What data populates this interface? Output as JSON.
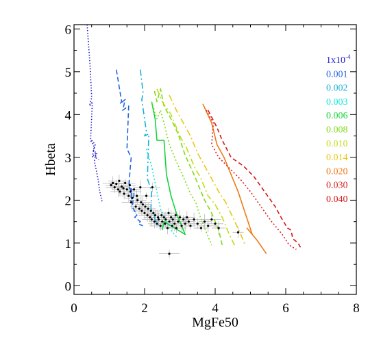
{
  "chart_data": {
    "type": "line",
    "xlabel": "MgFe50",
    "ylabel": "Hbeta",
    "xlim": [
      0,
      8
    ],
    "ylim": [
      -0.2,
      6.1
    ],
    "x_ticks": [
      0,
      2,
      4,
      6,
      8
    ],
    "x_tick_labels": [
      "0",
      "2",
      "4",
      "6",
      "8"
    ],
    "y_ticks": [
      0,
      1,
      2,
      3,
      4,
      5,
      6
    ],
    "y_tick_labels": [
      "0",
      "1",
      "2",
      "3",
      "4",
      "5",
      "6"
    ],
    "legend_position": "right",
    "legend": [
      {
        "label": "1x10",
        "sup": "-4",
        "color": "#1a1acc"
      },
      {
        "label": "0.001",
        "color": "#1f66e0"
      },
      {
        "label": "0.002",
        "color": "#16b0dc"
      },
      {
        "label": "0.003",
        "color": "#14e6dc"
      },
      {
        "label": "0.006",
        "color": "#14d43c"
      },
      {
        "label": "0.008",
        "color": "#7cdc14"
      },
      {
        "label": "0.010",
        "color": "#c2dc14"
      },
      {
        "label": "0.014",
        "color": "#e6c814"
      },
      {
        "label": "0.020",
        "color": "#f07814"
      },
      {
        "label": "0.030",
        "color": "#dc2020"
      },
      {
        "label": "0.040",
        "color": "#d41414"
      }
    ],
    "series": [
      {
        "color": "#1a1acc",
        "dash": "1.5,2.5",
        "x": [
          0.37,
          0.45,
          0.5,
          0.44,
          0.52,
          0.47,
          0.57,
          0.52,
          0.62,
          0.58,
          0.68,
          0.73,
          0.8
        ],
        "y": [
          6.1,
          5.2,
          4.4,
          4.2,
          4.3,
          3.4,
          3.25,
          3.0,
          3.1,
          2.9,
          2.5,
          2.2,
          1.95
        ]
      },
      {
        "color": "#1a1acc",
        "dash": "1.5,2.5",
        "x": [
          0.5,
          0.6,
          0.55,
          0.65,
          0.6,
          0.7
        ],
        "y": [
          3.4,
          3.3,
          3.15,
          3.1,
          3.0,
          2.95
        ]
      },
      {
        "color": "#1f66e0",
        "dash": "7,4",
        "x": [
          1.2,
          1.35,
          1.3,
          1.45,
          1.38,
          1.55,
          1.5,
          1.62,
          1.55,
          1.7,
          1.65,
          1.78,
          1.72,
          1.88,
          1.82,
          1.95
        ],
        "y": [
          5.05,
          4.3,
          4.25,
          4.35,
          4.1,
          4.2,
          3.2,
          3.0,
          2.3,
          2.15,
          1.85,
          1.65,
          1.6,
          1.5,
          1.45,
          1.4
        ]
      },
      {
        "color": "#1f66e0",
        "dash": "7,4",
        "x": [
          1.55,
          1.65,
          1.6,
          1.68
        ],
        "y": [
          2.3,
          2.25,
          2.0,
          1.9
        ]
      },
      {
        "color": "#16b0dc",
        "dash": "9,4,2,4",
        "x": [
          1.88,
          1.96,
          1.92,
          2.05,
          2.0,
          2.12,
          2.08,
          2.2,
          2.18,
          2.3,
          2.45
        ],
        "y": [
          5.05,
          4.5,
          4.35,
          3.6,
          3.5,
          3.55,
          2.5,
          2.2,
          1.8,
          1.55,
          1.35
        ]
      },
      {
        "color": "#14e6dc",
        "dash": "2,3",
        "x": [
          2.05,
          2.2,
          2.35,
          2.45,
          2.6,
          2.75,
          2.9
        ],
        "y": [
          3.2,
          2.8,
          2.2,
          1.8,
          1.55,
          1.3,
          1.15
        ]
      },
      {
        "color": "#14d43c",
        "dash": "",
        "x": [
          2.2,
          2.3,
          2.35,
          2.55,
          2.62,
          2.75,
          2.9,
          3.15,
          2.55,
          2.5
        ],
        "y": [
          4.3,
          3.9,
          3.4,
          3.4,
          2.6,
          2.1,
          1.7,
          1.2,
          1.5,
          1.3
        ]
      },
      {
        "color": "#7cdc14",
        "dash": "2,3",
        "x": [
          2.2,
          2.35,
          2.45,
          2.55,
          2.7,
          2.9,
          3.15,
          3.3,
          3.45,
          3.58,
          3.75,
          3.9
        ],
        "y": [
          4.3,
          3.9,
          4.1,
          3.8,
          3.3,
          2.9,
          2.45,
          2.15,
          1.95,
          1.6,
          1.25,
          0.95
        ]
      },
      {
        "color": "#7cdc14",
        "dash": "7,4",
        "x": [
          2.28,
          2.35,
          2.45,
          2.55,
          2.75,
          2.95,
          3.15,
          3.4,
          3.55,
          3.7,
          3.9,
          4.1,
          4.2
        ],
        "y": [
          4.55,
          4.3,
          4.6,
          4.2,
          3.9,
          3.55,
          3.05,
          2.6,
          2.3,
          2.0,
          1.7,
          1.3,
          0.95
        ]
      },
      {
        "color": "#c2dc14",
        "dash": "9,4,2,4",
        "x": [
          2.35,
          2.5,
          2.75,
          3.0,
          3.2,
          3.4,
          3.6,
          3.8,
          4.0,
          4.2,
          4.4,
          4.55
        ],
        "y": [
          4.6,
          4.3,
          4.0,
          3.5,
          3.2,
          2.8,
          2.5,
          2.1,
          1.9,
          1.6,
          1.2,
          0.95
        ]
      },
      {
        "color": "#e6c814",
        "dash": "9,4,2,4",
        "x": [
          2.7,
          2.9,
          3.1,
          3.3,
          3.5,
          3.7,
          3.9,
          4.1,
          4.3,
          4.5,
          4.7,
          4.85
        ],
        "y": [
          4.45,
          4.1,
          3.8,
          3.5,
          3.1,
          2.8,
          2.5,
          2.2,
          1.95,
          1.6,
          1.25,
          0.95
        ]
      },
      {
        "color": "#f07814",
        "dash": "",
        "x": [
          3.65,
          3.9,
          4.05,
          4.25,
          4.45,
          4.65,
          4.85,
          5.05,
          4.9,
          5.2,
          5.45
        ],
        "y": [
          4.25,
          3.8,
          3.3,
          3.0,
          2.6,
          2.2,
          1.7,
          1.2,
          1.35,
          1.05,
          0.75
        ]
      },
      {
        "color": "#dc2020",
        "dash": "2,3",
        "x": [
          3.75,
          3.95,
          3.9,
          4.1,
          4.4,
          4.7,
          5.0,
          5.3,
          5.6,
          5.9,
          6.1,
          6.3
        ],
        "y": [
          4.1,
          3.8,
          3.3,
          3.0,
          2.75,
          2.5,
          2.2,
          1.85,
          1.5,
          1.2,
          0.95,
          0.85
        ]
      },
      {
        "color": "#d41414",
        "dash": "6,4",
        "x": [
          3.8,
          4.05,
          4.2,
          4.45,
          4.8,
          5.1,
          5.4,
          5.7,
          5.9,
          6.05,
          6.15,
          6.2,
          6.35,
          6.45
        ],
        "y": [
          4.1,
          3.7,
          3.4,
          3.0,
          2.8,
          2.55,
          2.2,
          1.85,
          1.55,
          1.35,
          1.3,
          1.1,
          1.0,
          0.85
        ]
      }
    ],
    "points": [
      {
        "x": 1.05,
        "y": 2.35
      },
      {
        "x": 1.1,
        "y": 2.4
      },
      {
        "x": 1.15,
        "y": 2.3
      },
      {
        "x": 1.2,
        "y": 2.38
      },
      {
        "x": 1.25,
        "y": 2.25
      },
      {
        "x": 1.28,
        "y": 2.45
      },
      {
        "x": 1.3,
        "y": 2.2
      },
      {
        "x": 1.35,
        "y": 2.32
      },
      {
        "x": 1.4,
        "y": 2.28
      },
      {
        "x": 1.42,
        "y": 2.15
      },
      {
        "x": 1.45,
        "y": 2.4
      },
      {
        "x": 1.5,
        "y": 2.25
      },
      {
        "x": 1.55,
        "y": 2.1
      },
      {
        "x": 1.58,
        "y": 2.35
      },
      {
        "x": 1.6,
        "y": 2.2
      },
      {
        "x": 1.62,
        "y": 1.95
      },
      {
        "x": 1.65,
        "y": 2.05
      },
      {
        "x": 1.7,
        "y": 2.25
      },
      {
        "x": 1.75,
        "y": 1.85
      },
      {
        "x": 1.78,
        "y": 2.1
      },
      {
        "x": 1.8,
        "y": 2.0
      },
      {
        "x": 1.85,
        "y": 1.8
      },
      {
        "x": 1.88,
        "y": 2.3
      },
      {
        "x": 1.9,
        "y": 1.95
      },
      {
        "x": 1.92,
        "y": 1.75
      },
      {
        "x": 1.95,
        "y": 1.9
      },
      {
        "x": 2.0,
        "y": 1.7
      },
      {
        "x": 2.02,
        "y": 1.85
      },
      {
        "x": 2.05,
        "y": 2.1
      },
      {
        "x": 2.08,
        "y": 1.65
      },
      {
        "x": 2.1,
        "y": 1.8
      },
      {
        "x": 2.15,
        "y": 1.6
      },
      {
        "x": 2.18,
        "y": 1.75
      },
      {
        "x": 2.2,
        "y": 1.55
      },
      {
        "x": 2.22,
        "y": 2.3
      },
      {
        "x": 2.25,
        "y": 1.7
      },
      {
        "x": 2.28,
        "y": 1.5
      },
      {
        "x": 2.3,
        "y": 1.65
      },
      {
        "x": 2.35,
        "y": 1.45
      },
      {
        "x": 2.38,
        "y": 1.6
      },
      {
        "x": 2.4,
        "y": 1.55
      },
      {
        "x": 2.45,
        "y": 1.4
      },
      {
        "x": 2.48,
        "y": 1.65
      },
      {
        "x": 2.5,
        "y": 1.5
      },
      {
        "x": 2.55,
        "y": 1.6
      },
      {
        "x": 2.58,
        "y": 1.45
      },
      {
        "x": 2.6,
        "y": 1.55
      },
      {
        "x": 2.65,
        "y": 1.35
      },
      {
        "x": 2.68,
        "y": 1.7
      },
      {
        "x": 2.7,
        "y": 1.5
      },
      {
        "x": 2.75,
        "y": 1.6
      },
      {
        "x": 2.78,
        "y": 1.4
      },
      {
        "x": 2.8,
        "y": 1.55
      },
      {
        "x": 2.85,
        "y": 1.45
      },
      {
        "x": 2.88,
        "y": 1.65
      },
      {
        "x": 2.9,
        "y": 1.35
      },
      {
        "x": 2.95,
        "y": 1.5
      },
      {
        "x": 3.0,
        "y": 1.6
      },
      {
        "x": 3.05,
        "y": 1.4
      },
      {
        "x": 3.1,
        "y": 1.55
      },
      {
        "x": 3.15,
        "y": 1.45
      },
      {
        "x": 3.2,
        "y": 1.6
      },
      {
        "x": 3.25,
        "y": 1.5
      },
      {
        "x": 3.3,
        "y": 1.4
      },
      {
        "x": 3.4,
        "y": 1.55
      },
      {
        "x": 3.5,
        "y": 1.45
      },
      {
        "x": 3.6,
        "y": 1.35
      },
      {
        "x": 3.7,
        "y": 1.5
      },
      {
        "x": 3.8,
        "y": 1.4
      },
      {
        "x": 3.9,
        "y": 1.55
      },
      {
        "x": 4.0,
        "y": 1.45
      },
      {
        "x": 4.1,
        "y": 1.35
      },
      {
        "x": 4.65,
        "y": 1.25
      },
      {
        "x": 2.7,
        "y": 0.75
      }
    ]
  }
}
